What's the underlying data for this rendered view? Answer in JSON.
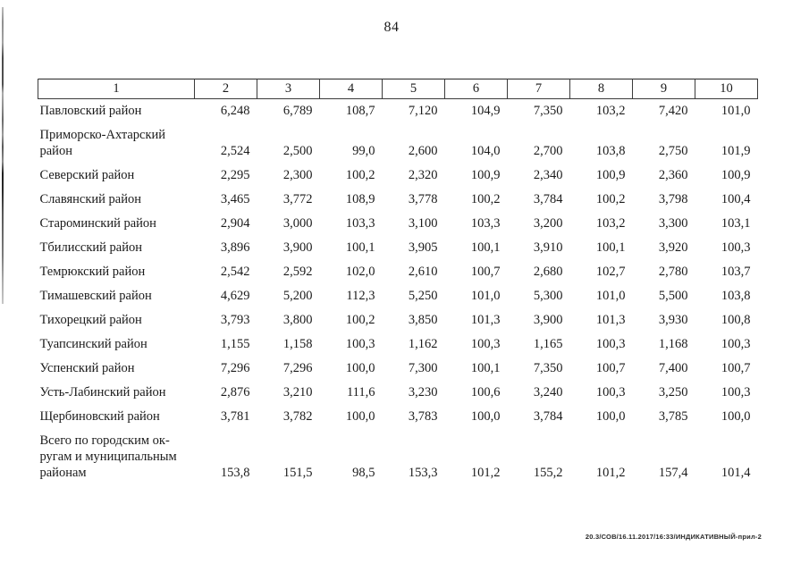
{
  "page": {
    "number": "84",
    "footer_code": "20.3/СОВ/16.11.2017/16:33/ИНДИКАТИВНЫЙ-прил-2"
  },
  "table": {
    "columns": [
      "1",
      "2",
      "3",
      "4",
      "5",
      "6",
      "7",
      "8",
      "9",
      "10"
    ],
    "rows": [
      {
        "name": "Павловский район",
        "values": [
          "6,248",
          "6,789",
          "108,7",
          "7,120",
          "104,9",
          "7,350",
          "103,2",
          "7,420",
          "101,0"
        ]
      },
      {
        "name": "Приморско-Ахтарский\nрайон",
        "values": [
          "2,524",
          "2,500",
          "99,0",
          "2,600",
          "104,0",
          "2,700",
          "103,8",
          "2,750",
          "101,9"
        ]
      },
      {
        "name": "Северский район",
        "values": [
          "2,295",
          "2,300",
          "100,2",
          "2,320",
          "100,9",
          "2,340",
          "100,9",
          "2,360",
          "100,9"
        ]
      },
      {
        "name": "Славянский район",
        "values": [
          "3,465",
          "3,772",
          "108,9",
          "3,778",
          "100,2",
          "3,784",
          "100,2",
          "3,798",
          "100,4"
        ]
      },
      {
        "name": "Староминский район",
        "values": [
          "2,904",
          "3,000",
          "103,3",
          "3,100",
          "103,3",
          "3,200",
          "103,2",
          "3,300",
          "103,1"
        ]
      },
      {
        "name": "Тбилисский район",
        "values": [
          "3,896",
          "3,900",
          "100,1",
          "3,905",
          "100,1",
          "3,910",
          "100,1",
          "3,920",
          "100,3"
        ]
      },
      {
        "name": "Темрюкский район",
        "values": [
          "2,542",
          "2,592",
          "102,0",
          "2,610",
          "100,7",
          "2,680",
          "102,7",
          "2,780",
          "103,7"
        ]
      },
      {
        "name": "Тимашевский район",
        "values": [
          "4,629",
          "5,200",
          "112,3",
          "5,250",
          "101,0",
          "5,300",
          "101,0",
          "5,500",
          "103,8"
        ]
      },
      {
        "name": "Тихорецкий район",
        "values": [
          "3,793",
          "3,800",
          "100,2",
          "3,850",
          "101,3",
          "3,900",
          "101,3",
          "3,930",
          "100,8"
        ]
      },
      {
        "name": "Туапсинский район",
        "values": [
          "1,155",
          "1,158",
          "100,3",
          "1,162",
          "100,3",
          "1,165",
          "100,3",
          "1,168",
          "100,3"
        ]
      },
      {
        "name": "Успенский район",
        "values": [
          "7,296",
          "7,296",
          "100,0",
          "7,300",
          "100,1",
          "7,350",
          "100,7",
          "7,400",
          "100,7"
        ]
      },
      {
        "name": "Усть-Лабинский район",
        "values": [
          "2,876",
          "3,210",
          "111,6",
          "3,230",
          "100,6",
          "3,240",
          "100,3",
          "3,250",
          "100,3"
        ]
      },
      {
        "name": "Щербиновский район",
        "values": [
          "3,781",
          "3,782",
          "100,0",
          "3,783",
          "100,0",
          "3,784",
          "100,0",
          "3,785",
          "100,0"
        ]
      },
      {
        "name": "Всего по городским ок-\nругам и муниципальным\nрайонам",
        "values": [
          "153,8",
          "151,5",
          "98,5",
          "153,3",
          "101,2",
          "155,2",
          "101,2",
          "157,4",
          "101,4"
        ]
      }
    ]
  }
}
